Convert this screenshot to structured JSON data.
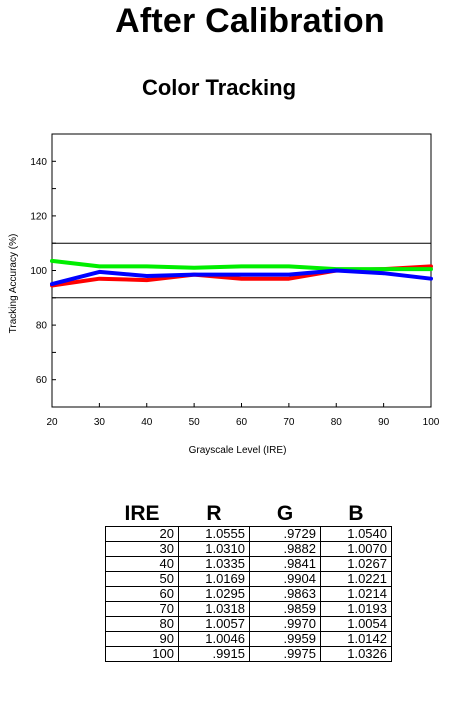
{
  "header": {
    "title": "After Calibration",
    "subtitle": "Color Tracking"
  },
  "chart_data": {
    "type": "line",
    "title": "Color Tracking",
    "xlabel": "Grayscale Level (IRE)",
    "ylabel": "Tracking Accuracy (%)",
    "x": [
      20,
      30,
      40,
      50,
      60,
      70,
      80,
      90,
      100
    ],
    "xlim": [
      20,
      100
    ],
    "ylim": [
      50,
      150
    ],
    "xticks": [
      "20",
      "30",
      "40",
      "50",
      "60",
      "70",
      "80",
      "90",
      "100"
    ],
    "yticks": [
      "60",
      "80",
      "100",
      "120",
      "140"
    ],
    "reference_lines": [
      110,
      90
    ],
    "grid": false,
    "series": [
      {
        "color": "#ff0000",
        "values": [
          94.5,
          97.0,
          96.5,
          98.5,
          97.0,
          97.0,
          100.0,
          100.5,
          101.5
        ]
      },
      {
        "color": "#00ee00",
        "values": [
          103.5,
          101.5,
          101.5,
          101.0,
          101.5,
          101.5,
          100.5,
          100.5,
          100.5
        ]
      },
      {
        "color": "#0000ff",
        "values": [
          95.0,
          99.5,
          98.0,
          98.5,
          98.5,
          98.5,
          100.0,
          99.0,
          97.0
        ]
      }
    ]
  },
  "table": {
    "headers": [
      "IRE",
      "R",
      "G",
      "B"
    ],
    "rows": [
      [
        "20",
        "1.0555",
        ".9729",
        "1.0540"
      ],
      [
        "30",
        "1.0310",
        ".9882",
        "1.0070"
      ],
      [
        "40",
        "1.0335",
        ".9841",
        "1.0267"
      ],
      [
        "50",
        "1.0169",
        ".9904",
        "1.0221"
      ],
      [
        "60",
        "1.0295",
        ".9863",
        "1.0214"
      ],
      [
        "70",
        "1.0318",
        ".9859",
        "1.0193"
      ],
      [
        "80",
        "1.0057",
        ".9970",
        "1.0054"
      ],
      [
        "90",
        "1.0046",
        ".9959",
        "1.0142"
      ],
      [
        "100",
        ".9915",
        ".9975",
        "1.0326"
      ]
    ]
  }
}
